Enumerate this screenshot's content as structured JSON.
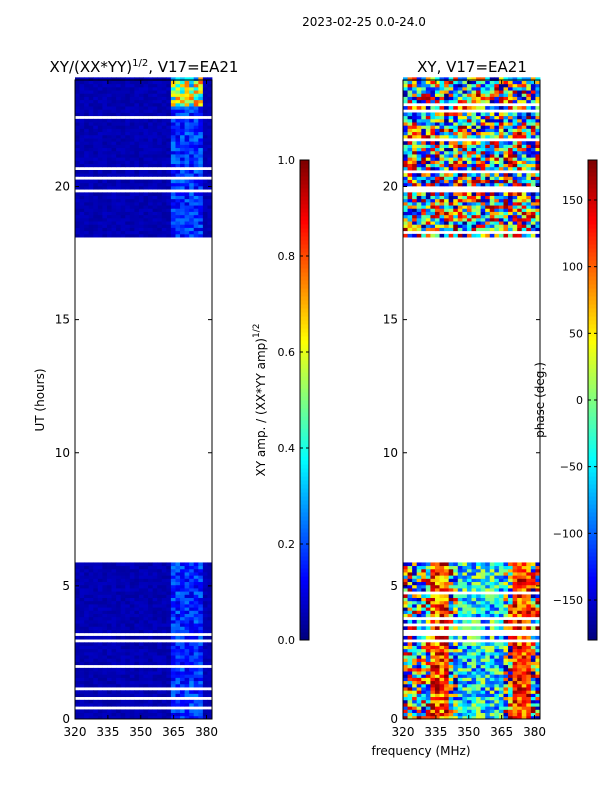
{
  "suptitle": "2023-02-25 0.0-24.0",
  "chart_data": [
    {
      "type": "heatmap",
      "title_main": "XY/(XX*YY)",
      "title_sup": "1/2",
      "title_tail": ", V17=EA21",
      "xlabel": "",
      "ylabel": "UT (hours)",
      "xlim": [
        320,
        382.5
      ],
      "ylim": [
        0,
        24
      ],
      "xticks": [
        320,
        335,
        350,
        365,
        380
      ],
      "yticks": [
        0,
        5,
        10,
        15,
        20
      ],
      "data_rows_hours": [
        [
          0,
          5.8
        ],
        [
          18.1,
          24
        ]
      ],
      "colorbar": {
        "label_main": "XY amp. / (XX*YY amp)",
        "label_sup": "1/2",
        "range": [
          0.0,
          1.0
        ],
        "ticks": [
          "0.0",
          "0.2",
          "0.4",
          "0.6",
          "0.8",
          "1.0"
        ]
      }
    },
    {
      "type": "heatmap",
      "title": "XY, V17=EA21",
      "xlabel": "frequency (MHz)",
      "ylabel": "",
      "xlim": [
        320,
        382.5
      ],
      "ylim": [
        0,
        24
      ],
      "xticks": [
        320,
        335,
        350,
        365,
        380
      ],
      "yticks": [
        0,
        5,
        10,
        15,
        20
      ],
      "data_rows_hours": [
        [
          0,
          5.8
        ],
        [
          18.1,
          24
        ]
      ],
      "colorbar": {
        "label": "phase (deg.)",
        "range": [
          -180,
          180
        ],
        "ticks": [
          "−150",
          "−100",
          "−50",
          "0",
          "50",
          "100",
          "150"
        ]
      }
    }
  ]
}
